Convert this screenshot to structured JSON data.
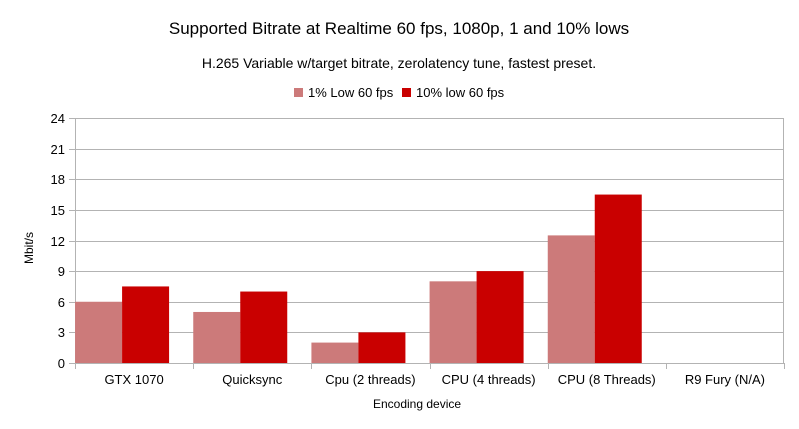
{
  "chart_data": {
    "type": "bar",
    "title": "Supported Bitrate at Realtime 60 fps, 1080p, 1 and 10% lows",
    "subtitle": "H.265 Variable w/target bitrate, zerolatency tune, fastest preset.",
    "xlabel": "Encoding device",
    "ylabel": "Mbit/s",
    "ylim": [
      0,
      24
    ],
    "yticks": [
      0,
      3,
      6,
      9,
      12,
      15,
      18,
      21,
      24
    ],
    "grid": true,
    "legend_position": "top-center",
    "categories": [
      "GTX 1070",
      "Quicksync",
      "Cpu (2 threads)",
      "CPU (4 threads)",
      "CPU (8 Threads)",
      "R9 Fury (N/A)"
    ],
    "series": [
      {
        "name": "1% Low 60 fps",
        "color": "#cc7a7a",
        "values": [
          6,
          5,
          2,
          8,
          12.5,
          0
        ]
      },
      {
        "name": "10% low 60 fps",
        "color": "#c90000",
        "values": [
          7.5,
          7,
          3,
          9,
          16.5,
          0
        ]
      }
    ]
  }
}
